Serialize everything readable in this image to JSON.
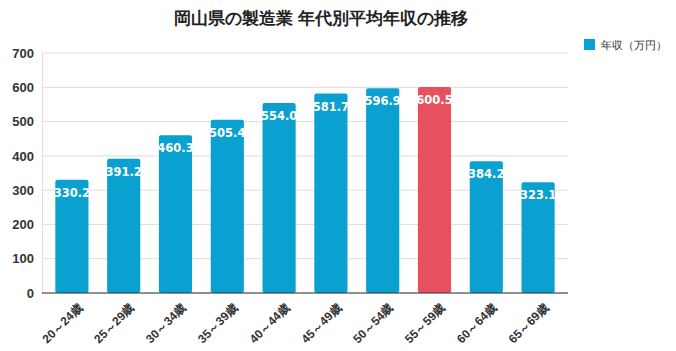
{
  "chart_data": {
    "type": "bar",
    "title": "岡山県の製造業 年代別平均年収の推移",
    "categories": [
      "20～24歳",
      "25～29歳",
      "30～34歳",
      "35～39歳",
      "40～44歳",
      "45～49歳",
      "50～54歳",
      "55～59歳",
      "60～64歳",
      "65～69歳"
    ],
    "series": [
      {
        "name": "年収（万円）",
        "color": "#0aa0d0",
        "colors": [
          "#0aa0d0",
          "#0aa0d0",
          "#0aa0d0",
          "#0aa0d0",
          "#0aa0d0",
          "#0aa0d0",
          "#0aa0d0",
          "#e8505f",
          "#0aa0d0",
          "#0aa0d0"
        ],
        "values": [
          330.2,
          391.2,
          460.3,
          505.4,
          554.0,
          581.7,
          596.9,
          600.5,
          384.2,
          323.1
        ],
        "value_labels": [
          "330.2",
          "391.2",
          "460.3",
          "505.4",
          "554.0",
          "581.7",
          "596.9",
          "600.5",
          "384.2",
          "323.1"
        ]
      }
    ],
    "ylim": [
      0,
      700
    ],
    "yticks": [
      0,
      100,
      200,
      300,
      400,
      500,
      600,
      700
    ],
    "grid": true,
    "legend": "top-right",
    "data_labels": true
  }
}
